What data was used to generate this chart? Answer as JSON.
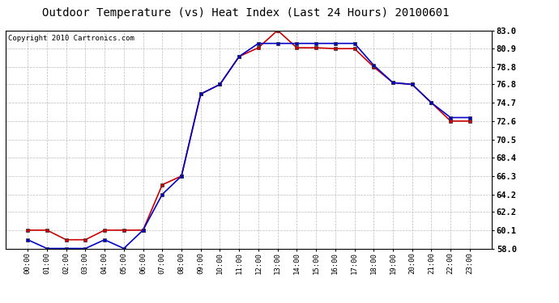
{
  "title": "Outdoor Temperature (vs) Heat Index (Last 24 Hours) 20100601",
  "copyright": "Copyright 2010 Cartronics.com",
  "hours": [
    "00:00",
    "01:00",
    "02:00",
    "03:00",
    "04:00",
    "05:00",
    "06:00",
    "07:00",
    "08:00",
    "09:00",
    "10:00",
    "11:00",
    "12:00",
    "13:00",
    "14:00",
    "15:00",
    "16:00",
    "17:00",
    "18:00",
    "19:00",
    "20:00",
    "21:00",
    "22:00",
    "23:00"
  ],
  "temp_red": [
    60.1,
    60.1,
    59.0,
    59.0,
    60.1,
    60.1,
    60.1,
    65.3,
    66.3,
    75.7,
    76.8,
    80.0,
    81.0,
    83.0,
    81.0,
    81.0,
    80.9,
    80.9,
    78.8,
    77.0,
    76.8,
    74.7,
    72.6,
    72.6
  ],
  "heat_blue": [
    59.0,
    58.0,
    58.0,
    58.0,
    59.0,
    58.0,
    60.1,
    64.2,
    66.3,
    75.7,
    76.8,
    80.0,
    81.5,
    81.5,
    81.5,
    81.5,
    81.5,
    81.5,
    79.0,
    77.0,
    76.8,
    74.7,
    73.0,
    73.0
  ],
  "ylim": [
    58.0,
    83.0
  ],
  "yticks": [
    58.0,
    60.1,
    62.2,
    64.2,
    66.3,
    68.4,
    70.5,
    72.6,
    74.7,
    76.8,
    78.8,
    80.9,
    83.0
  ],
  "red_color": "#cc0000",
  "blue_color": "#0000cc",
  "background_color": "#ffffff",
  "grid_color": "#bbbbbb",
  "title_fontsize": 10,
  "copyright_fontsize": 6.5
}
